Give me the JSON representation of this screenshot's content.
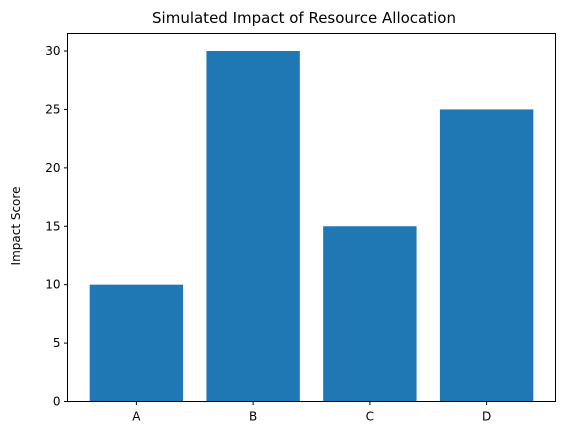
{
  "chart_data": {
    "type": "bar",
    "title": "Simulated Impact of Resource Allocation",
    "xlabel": "",
    "ylabel": "Impact Score",
    "categories": [
      "A",
      "B",
      "C",
      "D"
    ],
    "values": [
      10,
      30,
      15,
      25
    ],
    "ylim": [
      0,
      31.5
    ],
    "yticks": [
      0,
      5,
      10,
      15,
      20,
      25,
      30
    ],
    "bar_color": "#1f77b4",
    "grid": false,
    "legend": "none"
  }
}
